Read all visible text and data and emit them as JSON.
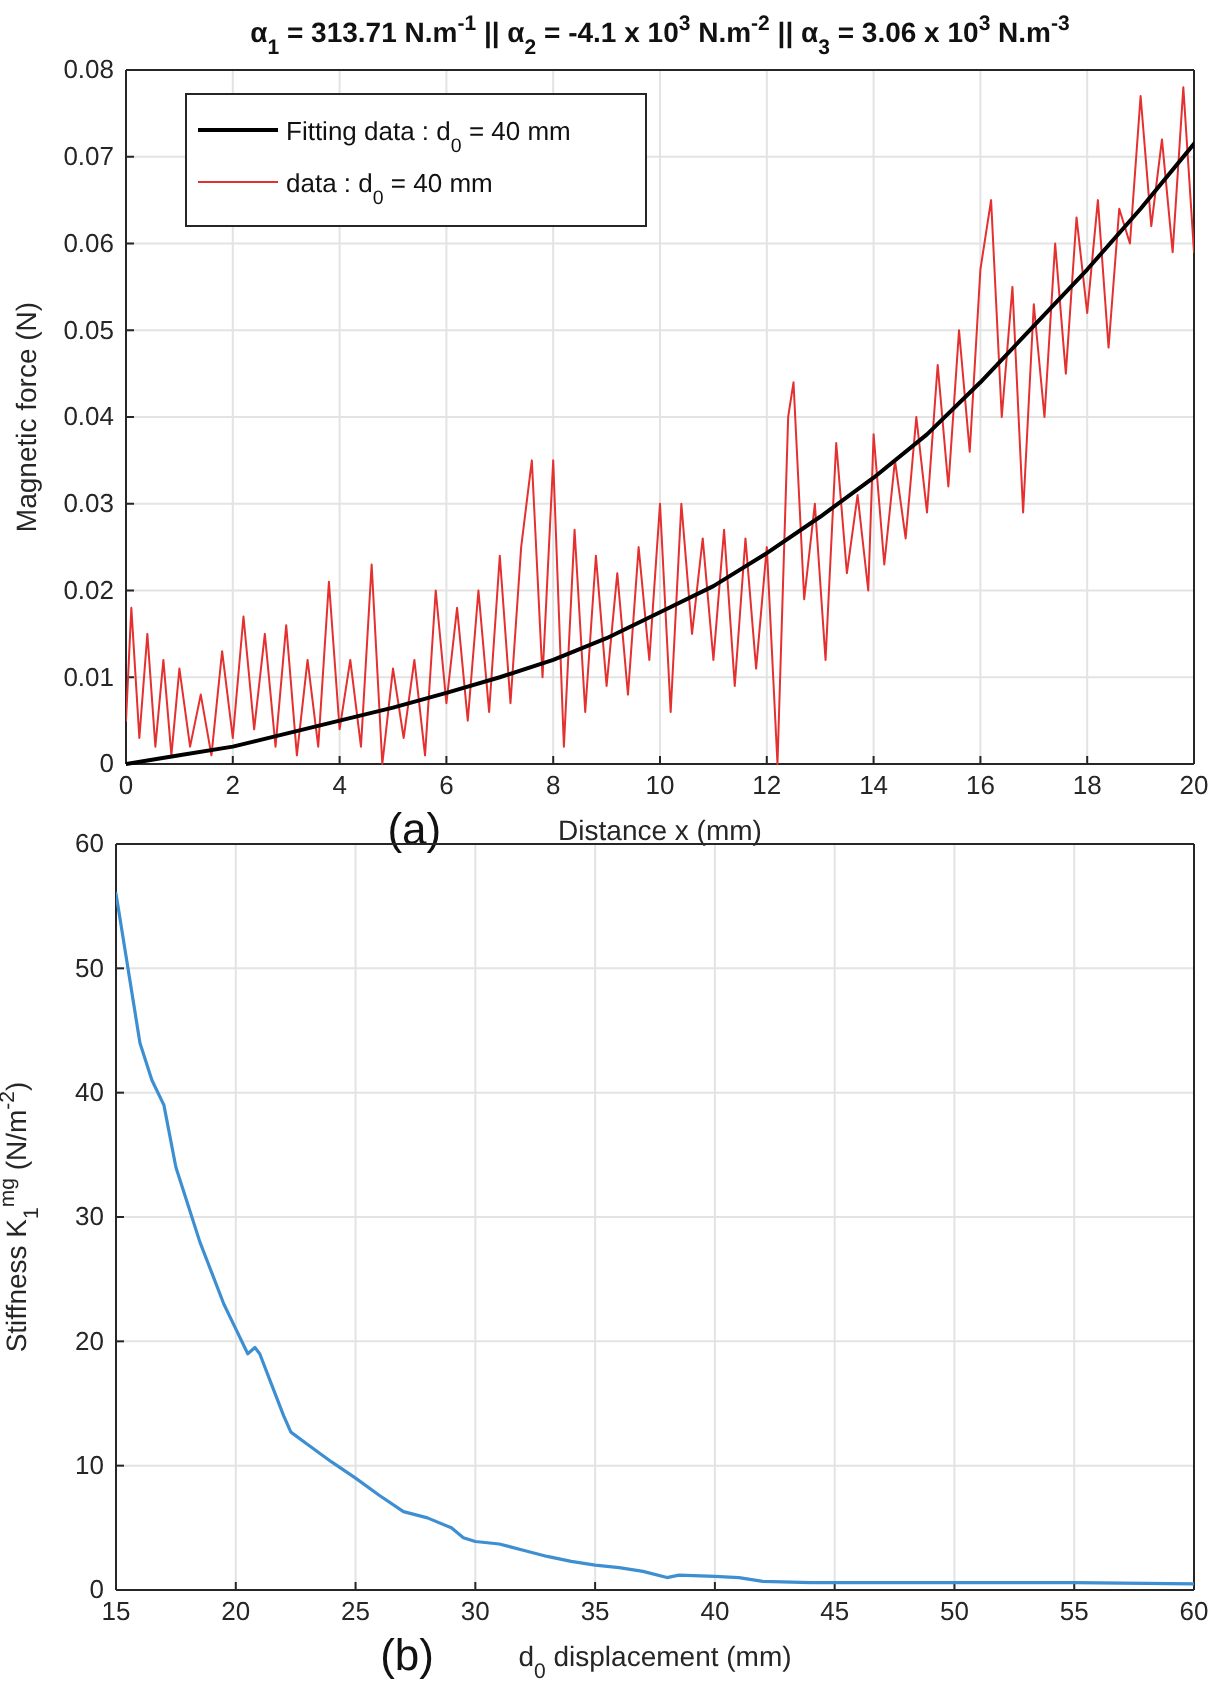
{
  "chart_data": [
    {
      "type": "line",
      "title": "α$_{1}$ = 313.71 N.m$^{-1}$  ||  α$_{2}$ = -4.1 x 10$^{3}$ N.m$^{-2}$  ||  α$_{3}$ = 3.06 x 10$^{3}$ N.m$^{-3}$",
      "xlabel": "Distance x (mm)",
      "ylabel": "Magnetic force (N)",
      "annotations": [
        "(a)"
      ],
      "xlim": [
        0,
        20
      ],
      "xticks": [
        0,
        2,
        4,
        6,
        8,
        10,
        12,
        14,
        16,
        18,
        20
      ],
      "ylim": [
        0,
        0.08
      ],
      "yticks": [
        0,
        0.01,
        0.02,
        0.03,
        0.04,
        0.05,
        0.06,
        0.07,
        0.08
      ],
      "grid": true,
      "legend": "top left",
      "series": [
        {
          "name": "Fitting data : d$_{0}$ = 40 mm",
          "color": "#000000",
          "x": [
            0,
            1,
            2,
            3,
            4,
            5,
            6,
            7,
            8,
            9,
            10,
            11,
            12,
            13,
            14,
            15,
            16,
            17,
            18,
            19,
            20
          ],
          "values": [
            0,
            0.001,
            0.002,
            0.0035,
            0.005,
            0.0065,
            0.0082,
            0.01,
            0.012,
            0.0145,
            0.0175,
            0.0205,
            0.0243,
            0.0285,
            0.033,
            0.038,
            0.044,
            0.0505,
            0.057,
            0.064,
            0.0715
          ]
        },
        {
          "name": "data : d$_{0}$ = 40 mm",
          "color": "#e53030",
          "x": [
            0,
            0.1,
            0.25,
            0.4,
            0.55,
            0.7,
            0.85,
            1.0,
            1.2,
            1.4,
            1.6,
            1.8,
            2.0,
            2.2,
            2.4,
            2.6,
            2.8,
            3.0,
            3.2,
            3.4,
            3.6,
            3.8,
            4.0,
            4.2,
            4.4,
            4.6,
            4.8,
            5.0,
            5.2,
            5.4,
            5.6,
            5.8,
            6.0,
            6.2,
            6.4,
            6.6,
            6.8,
            7.0,
            7.2,
            7.4,
            7.6,
            7.8,
            8.0,
            8.2,
            8.4,
            8.6,
            8.8,
            9.0,
            9.2,
            9.4,
            9.6,
            9.8,
            10.0,
            10.2,
            10.4,
            10.6,
            10.8,
            11.0,
            11.2,
            11.4,
            11.6,
            11.8,
            12.0,
            12.2,
            12.4,
            12.5,
            12.7,
            12.9,
            13.1,
            13.3,
            13.5,
            13.7,
            13.9,
            14.0,
            14.2,
            14.4,
            14.6,
            14.8,
            15.0,
            15.2,
            15.4,
            15.6,
            15.8,
            16.0,
            16.2,
            16.4,
            16.6,
            16.8,
            17.0,
            17.2,
            17.4,
            17.6,
            17.8,
            18.0,
            18.2,
            18.4,
            18.6,
            18.8,
            19.0,
            19.2,
            19.4,
            19.6,
            19.8,
            20.0
          ],
          "values": [
            0.005,
            0.018,
            0.003,
            0.015,
            0.002,
            0.012,
            0.001,
            0.011,
            0.002,
            0.008,
            0.001,
            0.013,
            0.003,
            0.017,
            0.004,
            0.015,
            0.002,
            0.016,
            0.001,
            0.012,
            0.002,
            0.021,
            0.004,
            0.012,
            0.002,
            0.023,
            0,
            0.011,
            0.003,
            0.012,
            0.001,
            0.02,
            0.007,
            0.018,
            0.005,
            0.02,
            0.006,
            0.024,
            0.007,
            0.025,
            0.035,
            0.01,
            0.035,
            0.002,
            0.027,
            0.006,
            0.024,
            0.009,
            0.022,
            0.008,
            0.025,
            0.012,
            0.03,
            0.006,
            0.03,
            0.015,
            0.026,
            0.012,
            0.027,
            0.009,
            0.026,
            0.011,
            0.025,
            0,
            0.04,
            0.044,
            0.019,
            0.03,
            0.012,
            0.037,
            0.022,
            0.031,
            0.02,
            0.038,
            0.023,
            0.035,
            0.026,
            0.04,
            0.029,
            0.046,
            0.032,
            0.05,
            0.036,
            0.057,
            0.065,
            0.04,
            0.055,
            0.029,
            0.053,
            0.04,
            0.06,
            0.045,
            0.063,
            0.052,
            0.065,
            0.048,
            0.064,
            0.06,
            0.077,
            0.062,
            0.072,
            0.059,
            0.078,
            0.059
          ]
        }
      ]
    },
    {
      "type": "line",
      "xlabel": "d$_{0}$ displacement (mm)",
      "ylabel": "Stiffness K$_{1}$$^{mg}$ (N/m$^{-2}$)",
      "annotations": [
        "(b)"
      ],
      "xlim": [
        15,
        60
      ],
      "xticks": [
        15,
        20,
        25,
        30,
        35,
        40,
        45,
        50,
        55,
        60
      ],
      "ylim": [
        0,
        60
      ],
      "yticks": [
        0,
        10,
        20,
        30,
        40,
        50,
        60
      ],
      "grid": true,
      "series": [
        {
          "color": "#3d8fd1",
          "x": [
            15,
            15.5,
            16,
            16.5,
            17,
            17.5,
            18,
            18.5,
            19,
            19.5,
            20,
            20.5,
            20.8,
            21,
            21.5,
            22,
            22.3,
            23,
            24,
            25,
            26,
            27,
            28,
            29,
            29.5,
            30,
            31,
            32,
            33,
            34,
            35,
            36,
            37,
            38,
            38.5,
            40,
            41,
            42,
            44,
            46,
            50,
            55,
            60
          ],
          "values": [
            56,
            50,
            44,
            41,
            39,
            34,
            31,
            28,
            25.5,
            23,
            21,
            19,
            19.5,
            19,
            16.5,
            14,
            12.7,
            11.7,
            10.3,
            9,
            7.6,
            6.3,
            5.8,
            5,
            4.2,
            3.9,
            3.7,
            3.2,
            2.7,
            2.3,
            2,
            1.8,
            1.5,
            1,
            1.2,
            1.1,
            1,
            0.7,
            0.6,
            0.6,
            0.6,
            0.6,
            0.5
          ]
        }
      ]
    }
  ]
}
